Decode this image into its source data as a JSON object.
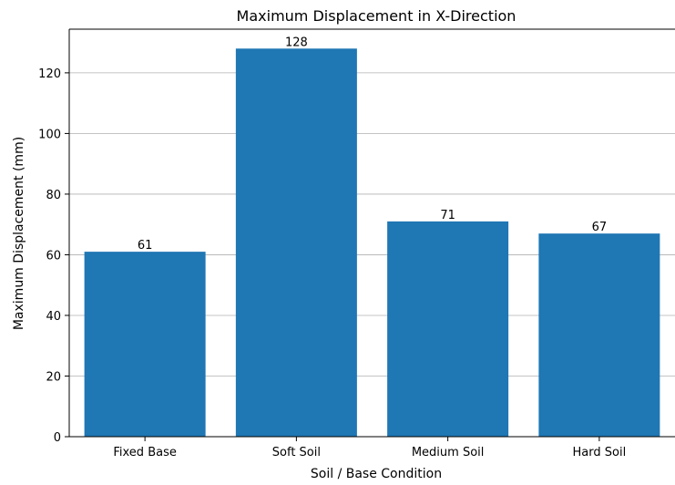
{
  "chart_data": {
    "type": "bar",
    "title": "Maximum Displacement in X-Direction",
    "xlabel": "Soil / Base Condition",
    "ylabel": "Maximum Displacement (mm)",
    "categories": [
      "Fixed Base",
      "Soft Soil",
      "Medium Soil",
      "Hard Soil"
    ],
    "values": [
      61,
      128,
      71,
      67
    ],
    "data_labels": [
      "61",
      "128",
      "71",
      "67"
    ],
    "ylim": [
      0,
      134.4
    ],
    "yticks": [
      0,
      20,
      40,
      60,
      80,
      100,
      120
    ],
    "grid": "y-axis only",
    "legend": "none",
    "colors": {
      "bar": "#1f77b4",
      "grid": "#b0b0b0",
      "axis": "#000000"
    }
  }
}
